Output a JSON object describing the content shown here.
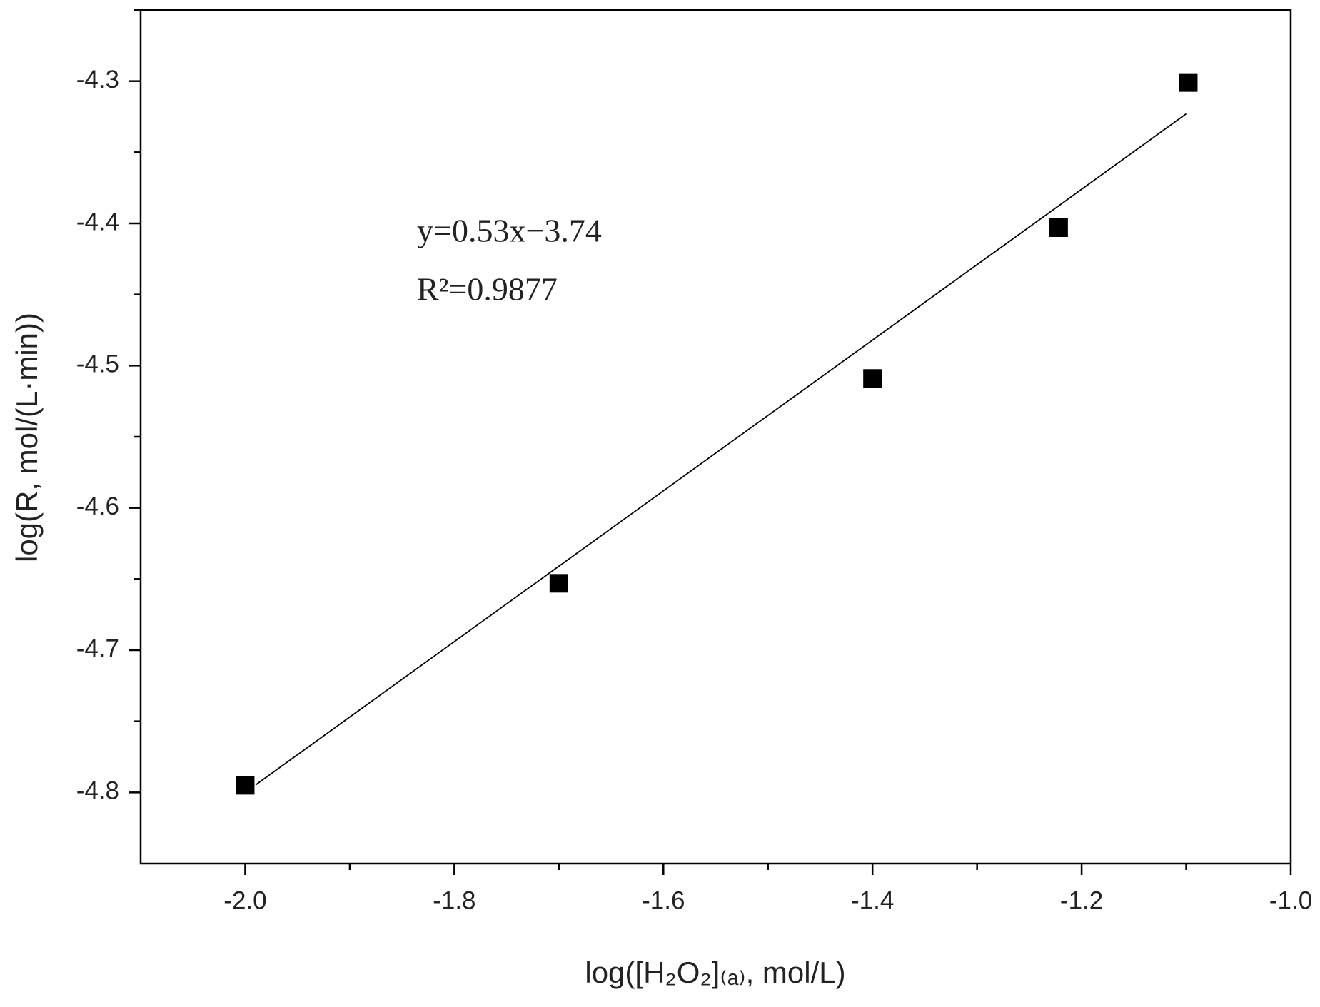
{
  "chart_data": {
    "type": "scatter",
    "x_label": "log([H₂O₂]₍ₐ₎, mol/L)",
    "y_label": "log(R, mol/(L·min))",
    "series": [
      {
        "color": "#000000",
        "x": [
          -2.0,
          -1.7,
          -1.4,
          -1.222,
          -1.098
        ],
        "values": [
          -4.795,
          -4.653,
          -4.509,
          -4.403,
          -4.301
        ]
      }
    ],
    "fit": {
      "slope": 0.53,
      "intercept": -3.74,
      "x": [
        -1.99,
        -1.1
      ],
      "color": "#000000"
    },
    "annotations": [
      "y=0.53x−3.74",
      "R²=0.9877"
    ],
    "xlim": [
      -2.1,
      -1.0
    ],
    "xticks": [
      {
        "value": -2.0,
        "label": "-2.0"
      },
      -1.8,
      -1.6,
      -1.4,
      -1.2,
      {
        "value": -1.0,
        "label": "-1.0"
      }
    ],
    "xminorticks": [
      -1.9,
      -1.7,
      -1.5,
      -1.3,
      -1.1
    ],
    "ylim": [
      -4.85,
      -4.25
    ],
    "yticks": [
      -4.8,
      -4.7,
      -4.6,
      -4.5,
      -4.4,
      -4.3
    ],
    "yminorticks": [
      -4.75,
      -4.65,
      -4.55,
      -4.45,
      -4.35,
      -4.25
    ],
    "grid": false
  }
}
